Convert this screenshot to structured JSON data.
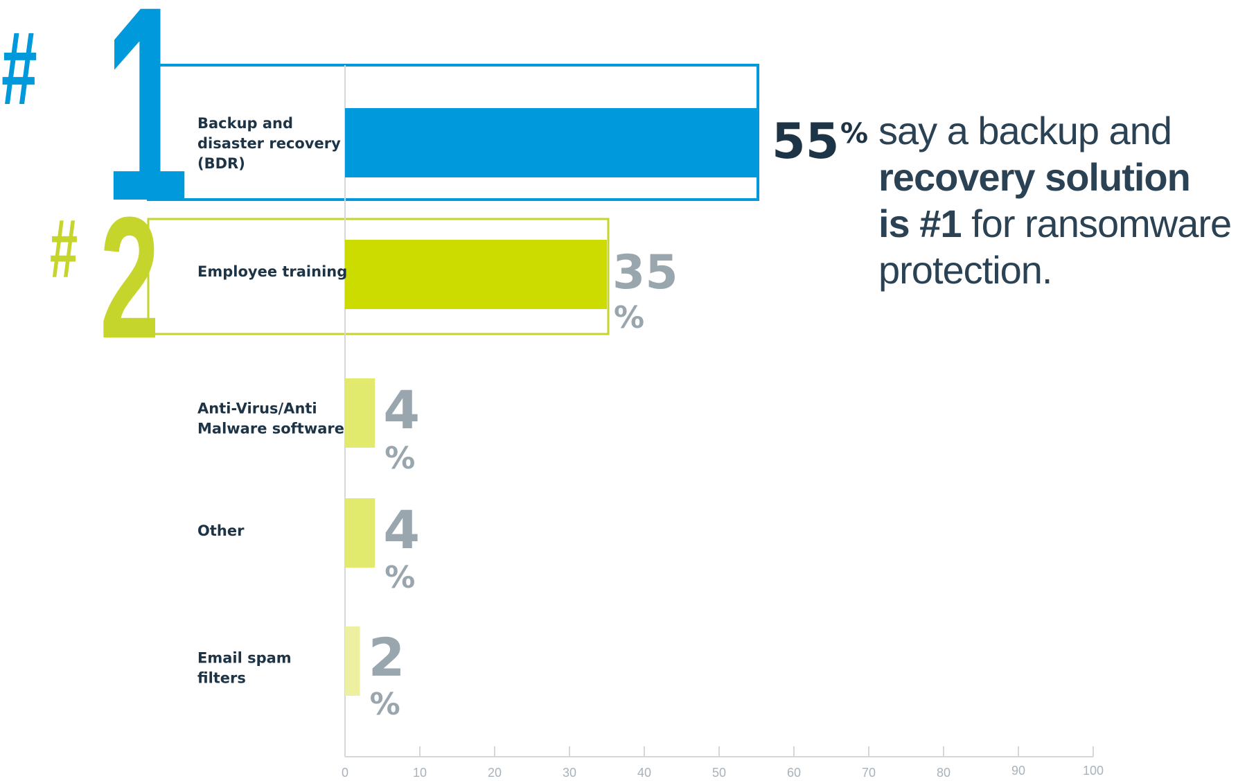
{
  "chart_data": {
    "type": "bar",
    "orientation": "horizontal",
    "categories": [
      [
        "Backup and",
        "disaster recovery",
        "(BDR)"
      ],
      [
        "Employee training"
      ],
      [
        "Anti-Virus/Anti",
        "Malware software"
      ],
      [
        "Other"
      ],
      [
        "Email spam",
        "filters"
      ]
    ],
    "values": [
      55,
      35,
      4,
      4,
      2
    ],
    "value_labels": [
      "55",
      "35",
      "4",
      "4",
      "2"
    ],
    "unit": "%",
    "xlim": [
      0,
      100
    ],
    "xticks": [
      0,
      10,
      20,
      30,
      40,
      50,
      60,
      70,
      80,
      90,
      100
    ],
    "ranks": [
      "#1",
      "#2"
    ],
    "colors": {
      "bar1": "#0099db",
      "bar2": "#ccdb00",
      "bar3": "#e2ea6d",
      "bar4": "#e2ea6d",
      "bar5": "#ecf0a0",
      "rank1": "#0099db",
      "rank2": "#c5d52b",
      "value_dark": "#1d3346",
      "value_grey": "#9aa6ae",
      "axis": "#d4d8db"
    },
    "grid": false
  },
  "callout": {
    "line1": "say a backup and",
    "line2_bold": "recovery solution",
    "line3_bold": "is #1",
    "line3_rest": " for ransomware",
    "line4": "protection."
  }
}
